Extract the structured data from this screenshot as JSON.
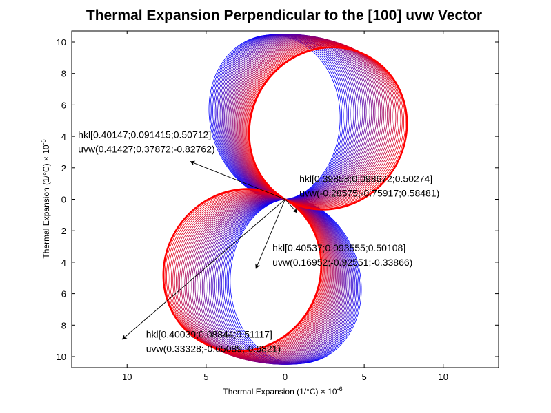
{
  "chart_data": {
    "type": "line",
    "title": "Thermal Expansion Perpendicular to the [100] uvw Vector",
    "xlabel": "Thermal Expansion (1/°C) × 10",
    "xlabel_exponent": "-6",
    "ylabel": "Thermal Expansion (1/°C) × 10",
    "ylabel_exponent": "-6",
    "xlim": [
      -13.5,
      13.5
    ],
    "ylim": [
      -10.7,
      10.7
    ],
    "xticks": [
      -10,
      -5,
      0,
      5,
      10
    ],
    "yticks": [
      -10,
      -8,
      -6,
      -4,
      -2,
      0,
      2,
      4,
      6,
      8,
      10
    ],
    "xtick_labels": [
      "10",
      "5",
      "0",
      "5",
      "10"
    ],
    "ytick_labels": [
      "10",
      "8",
      "6",
      "4",
      "2",
      "0",
      "2",
      "4",
      "6",
      "8",
      "10"
    ],
    "grid": false,
    "colors": {
      "start": "#0000ff",
      "end": "#ff0000",
      "annotation": "#000000"
    },
    "series": [
      {
        "shape": "two-lobe family of closed curves (lobe axis rotating through ~38°, radius ~10.5)",
        "curve_count": 40,
        "lobe_radius": 10.5,
        "lobe_axis_start_deg": 97,
        "lobe_axis_end_deg": 59,
        "inner_bulge_start": 0.5,
        "inner_bulge_end": 0.14
      }
    ],
    "annotations": [
      {
        "line1": "hkl[0.40147;0.091415;0.50712]",
        "line2": "uvw(0.41427;0.37872;-0.82762)",
        "arrow_to": [
          -6.0,
          2.4
        ],
        "text_at": [
          -13.1,
          3.9
        ]
      },
      {
        "line1": "hkl[0.39858;0.098672;0.50274]",
        "line2": "uvw(-0.28575;-0.75917;0.58481)",
        "arrow_to": [
          0.75,
          -0.85
        ],
        "text_at": [
          0.9,
          1.1
        ]
      },
      {
        "line1": "hkl[0.40537;0.093555;0.50108]",
        "line2": "uvw(0.16952;-0.92551;-0.33866)",
        "arrow_to": [
          -1.85,
          -4.4
        ],
        "text_at": [
          -0.8,
          -3.3
        ]
      },
      {
        "line1": "hkl[0.40039;0.08844;0.51117]",
        "line2": "uvw(0.33328;-0.65089;-0.6821)",
        "arrow_to": [
          -10.3,
          -8.9
        ],
        "text_at": [
          -8.8,
          -8.8
        ]
      }
    ]
  }
}
